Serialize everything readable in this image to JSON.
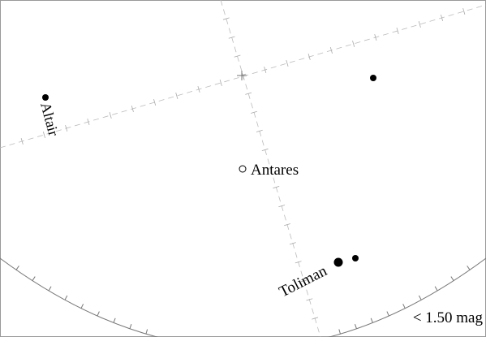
{
  "chart": {
    "type": "sky map",
    "magnitude_limit": "< 1.50 mag",
    "stars": [
      {
        "name": "Altair",
        "labeled": true,
        "filled": true
      },
      {
        "name": "Antares",
        "labeled": true,
        "filled": false
      },
      {
        "name": "Toliman",
        "labeled": true,
        "filled": true
      },
      {
        "name": "",
        "labeled": false,
        "filled": true
      },
      {
        "name": "",
        "labeled": false,
        "filled": true
      }
    ],
    "colors": {
      "background": "#ffffff",
      "star": "#000000",
      "grid": "#bbbbbb",
      "horizon": "#777777"
    }
  }
}
